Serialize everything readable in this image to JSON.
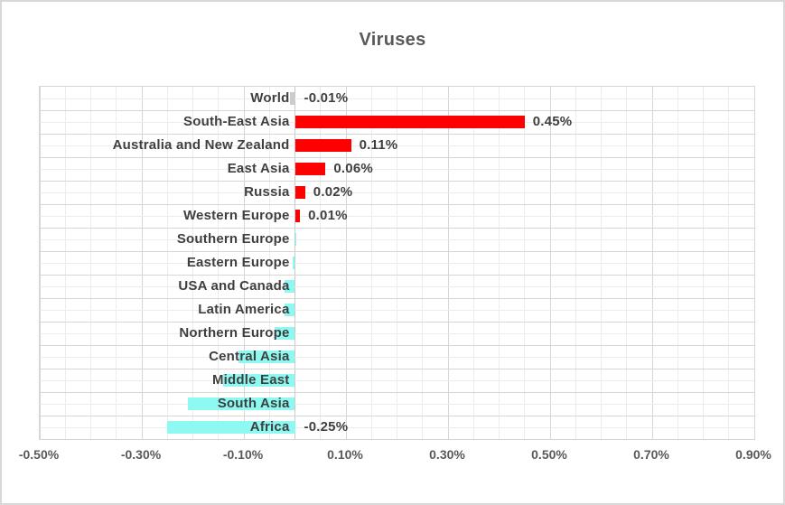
{
  "chart_data": {
    "type": "bar",
    "orientation": "horizontal",
    "title": "Viruses",
    "categories": [
      "World",
      "South-East Asia",
      "Australia and New Zealand",
      "East Asia",
      "Russia",
      "Western Europe",
      "Southern Europe",
      "Eastern Europe",
      "USA and Canada",
      "Latin America",
      "Northern Europe",
      "Central Asia",
      "Middle East",
      "South Asia",
      "Africa"
    ],
    "values": [
      -0.01,
      0.45,
      0.11,
      0.06,
      0.02,
      0.01,
      0.003,
      -0.005,
      -0.02,
      -0.02,
      -0.04,
      -0.11,
      -0.14,
      -0.21,
      -0.25
    ],
    "data_labels": [
      "-0.01%",
      "0.45%",
      "0.11%",
      "0.06%",
      "0.02%",
      "0.01%",
      "",
      "",
      "",
      "",
      "",
      "",
      "",
      "",
      "-0.25%"
    ],
    "bar_color_keys": [
      "gray",
      "red",
      "red",
      "red",
      "red",
      "red",
      "cyan",
      "cyan",
      "cyan",
      "cyan",
      "cyan",
      "cyan",
      "cyan",
      "cyan",
      "cyan"
    ],
    "colors": {
      "red": "#FF0000",
      "cyan": "#8EF9F1",
      "gray": "#CDCBCB",
      "title_text": "#595959",
      "label_text": "#3F3F3F",
      "axis_text": "#595959",
      "grid_minor": "#ECECEC",
      "grid_major": "#D6D6D6"
    },
    "x_ticks": [
      "-0.50%",
      "-0.30%",
      "-0.10%",
      "0.10%",
      "0.30%",
      "0.50%",
      "0.70%",
      "0.90%"
    ],
    "xlim": [
      -0.5,
      0.9
    ],
    "x_unit": "%",
    "grid": "major and minor gridlines, both axes",
    "legend": "none"
  }
}
